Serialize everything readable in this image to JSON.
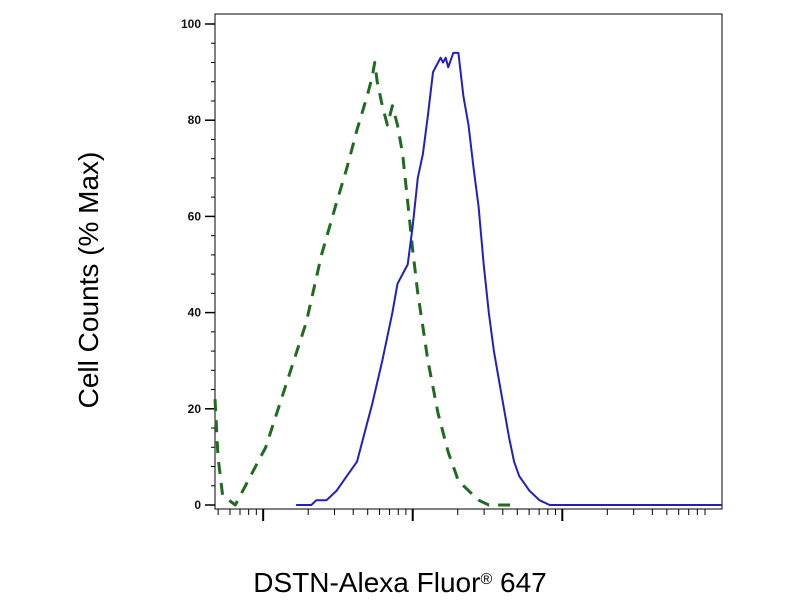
{
  "chart_data": {
    "type": "line",
    "xlabel": {
      "main": "DSTN-Alexa Fluor",
      "registered": "®",
      "suffix": " 647"
    },
    "ylabel": "Cell Counts (% Max)",
    "ylim": [
      0,
      100
    ],
    "yticks": [
      "0",
      "20",
      "40",
      "60",
      "80",
      "100"
    ],
    "xscale": "log",
    "xlim": [
      0,
      1
    ],
    "grid": false,
    "legend": "none",
    "series": [
      {
        "style": "dashed",
        "color": "#1f6b1f",
        "points": [
          [
            0.0,
            22
          ],
          [
            0.006,
            10
          ],
          [
            0.015,
            2
          ],
          [
            0.04,
            0
          ],
          [
            0.07,
            6
          ],
          [
            0.1,
            12
          ],
          [
            0.14,
            25
          ],
          [
            0.18,
            38
          ],
          [
            0.21,
            52
          ],
          [
            0.24,
            63
          ],
          [
            0.26,
            70
          ],
          [
            0.28,
            78
          ],
          [
            0.3,
            85
          ],
          [
            0.31,
            89
          ],
          [
            0.315,
            92
          ],
          [
            0.32,
            88
          ],
          [
            0.33,
            83
          ],
          [
            0.34,
            79
          ],
          [
            0.35,
            83
          ],
          [
            0.36,
            79
          ],
          [
            0.37,
            73
          ],
          [
            0.38,
            63
          ],
          [
            0.39,
            53
          ],
          [
            0.4,
            44
          ],
          [
            0.41,
            37
          ],
          [
            0.42,
            30
          ],
          [
            0.44,
            19
          ],
          [
            0.46,
            11
          ],
          [
            0.48,
            5
          ],
          [
            0.5,
            3
          ],
          [
            0.52,
            1
          ],
          [
            0.54,
            0
          ],
          [
            0.58,
            0
          ],
          [
            0.6,
            0
          ]
        ]
      },
      {
        "style": "solid",
        "color": "#2020c0",
        "points": [
          [
            0.16,
            0
          ],
          [
            0.19,
            0
          ],
          [
            0.2,
            1
          ],
          [
            0.22,
            1
          ],
          [
            0.24,
            3
          ],
          [
            0.26,
            6
          ],
          [
            0.28,
            9
          ],
          [
            0.3,
            17
          ],
          [
            0.31,
            21
          ],
          [
            0.33,
            30
          ],
          [
            0.35,
            40
          ],
          [
            0.36,
            46
          ],
          [
            0.37,
            48
          ],
          [
            0.38,
            50
          ],
          [
            0.39,
            58
          ],
          [
            0.4,
            68
          ],
          [
            0.41,
            73
          ],
          [
            0.42,
            81
          ],
          [
            0.43,
            90
          ],
          [
            0.44,
            92
          ],
          [
            0.445,
            93
          ],
          [
            0.45,
            92
          ],
          [
            0.455,
            93
          ],
          [
            0.46,
            91
          ],
          [
            0.47,
            94
          ],
          [
            0.48,
            94
          ],
          [
            0.49,
            85
          ],
          [
            0.5,
            79
          ],
          [
            0.51,
            70
          ],
          [
            0.52,
            62
          ],
          [
            0.53,
            50
          ],
          [
            0.54,
            40
          ],
          [
            0.55,
            32
          ],
          [
            0.56,
            26
          ],
          [
            0.57,
            20
          ],
          [
            0.58,
            14
          ],
          [
            0.59,
            9
          ],
          [
            0.6,
            6
          ],
          [
            0.62,
            3
          ],
          [
            0.64,
            1
          ],
          [
            0.66,
            0
          ],
          [
            1.0,
            0
          ]
        ]
      }
    ]
  }
}
